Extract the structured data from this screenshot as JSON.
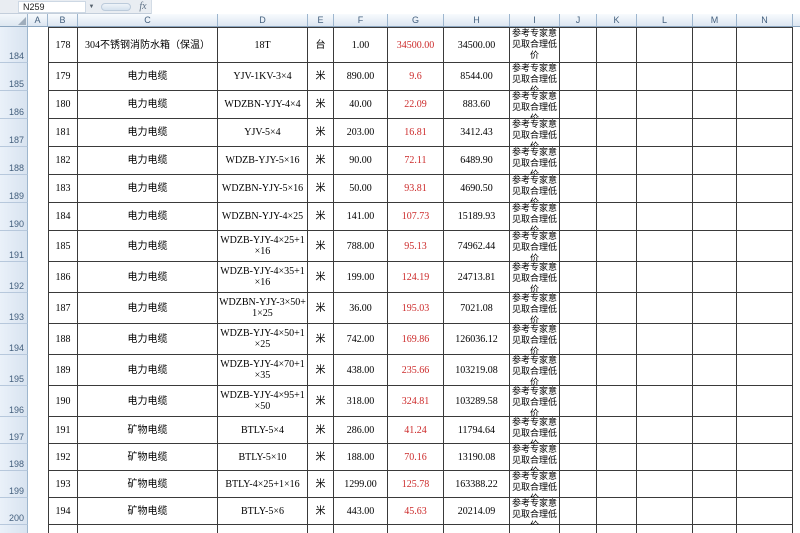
{
  "name_box": {
    "value": "N259"
  },
  "formula_bar": {
    "value": "",
    "fx_label": "fx"
  },
  "column_headers": [
    "A",
    "B",
    "C",
    "D",
    "E",
    "F",
    "G",
    "H",
    "I",
    "J",
    "K",
    "L",
    "M",
    "N"
  ],
  "row_headers": [
    "184",
    "185",
    "186",
    "187",
    "188",
    "189",
    "190",
    "191",
    "192",
    "193",
    "194",
    "195",
    "196",
    "197",
    "198",
    "199",
    "200"
  ],
  "colors": {
    "price_text": "#cc2a2a",
    "grid_border": "#3a3a3a",
    "header_text": "#44607e"
  },
  "table": {
    "rows": [
      {
        "no": "178",
        "name": "304不锈钢消防水箱（保温）",
        "model": "18T",
        "unit": "台",
        "qty": "1.00",
        "price": "34500.00",
        "total": "34500.00",
        "remark": "参考专家意见取合理低价"
      },
      {
        "no": "179",
        "name": "电力电缆",
        "model": "YJV-1KV-3×4",
        "unit": "米",
        "qty": "890.00",
        "price": "9.6",
        "total": "8544.00",
        "remark": "参考专家意见取合理低价"
      },
      {
        "no": "180",
        "name": "电力电缆",
        "model": "WDZBN-YJY-4×4",
        "unit": "米",
        "qty": "40.00",
        "price": "22.09",
        "total": "883.60",
        "remark": "参考专家意见取合理低价"
      },
      {
        "no": "181",
        "name": "电力电缆",
        "model": "YJV-5×4",
        "unit": "米",
        "qty": "203.00",
        "price": "16.81",
        "total": "3412.43",
        "remark": "参考专家意见取合理低价"
      },
      {
        "no": "182",
        "name": "电力电缆",
        "model": "WDZB-YJY-5×16",
        "unit": "米",
        "qty": "90.00",
        "price": "72.11",
        "total": "6489.90",
        "remark": "参考专家意见取合理低价"
      },
      {
        "no": "183",
        "name": "电力电缆",
        "model": "WDZBN-YJY-5×16",
        "unit": "米",
        "qty": "50.00",
        "price": "93.81",
        "total": "4690.50",
        "remark": "参考专家意见取合理低价"
      },
      {
        "no": "184",
        "name": "电力电缆",
        "model": "WDZBN-YJY-4×25",
        "unit": "米",
        "qty": "141.00",
        "price": "107.73",
        "total": "15189.93",
        "remark": "参考专家意见取合理低价"
      },
      {
        "no": "185",
        "name": "电力电缆",
        "model": "WDZB-YJY-4×25+1×16",
        "unit": "米",
        "qty": "788.00",
        "price": "95.13",
        "total": "74962.44",
        "remark": "参考专家意见取合理低价"
      },
      {
        "no": "186",
        "name": "电力电缆",
        "model": "WDZB-YJY-4×35+1×16",
        "unit": "米",
        "qty": "199.00",
        "price": "124.19",
        "total": "24713.81",
        "remark": "参考专家意见取合理低价"
      },
      {
        "no": "187",
        "name": "电力电缆",
        "model": "WDZBN-YJY-3×50+1×25",
        "unit": "米",
        "qty": "36.00",
        "price": "195.03",
        "total": "7021.08",
        "remark": "参考专家意见取合理低价"
      },
      {
        "no": "188",
        "name": "电力电缆",
        "model": "WDZB-YJY-4×50+1×25",
        "unit": "米",
        "qty": "742.00",
        "price": "169.86",
        "total": "126036.12",
        "remark": "参考专家意见取合理低价"
      },
      {
        "no": "189",
        "name": "电力电缆",
        "model": "WDZB-YJY-4×70+1×35",
        "unit": "米",
        "qty": "438.00",
        "price": "235.66",
        "total": "103219.08",
        "remark": "参考专家意见取合理低价"
      },
      {
        "no": "190",
        "name": "电力电缆",
        "model": "WDZB-YJY-4×95+1×50",
        "unit": "米",
        "qty": "318.00",
        "price": "324.81",
        "total": "103289.58",
        "remark": "参考专家意见取合理低价"
      },
      {
        "no": "191",
        "name": "矿物电缆",
        "model": "BTLY-5×4",
        "unit": "米",
        "qty": "286.00",
        "price": "41.24",
        "total": "11794.64",
        "remark": "参考专家意见取合理低价"
      },
      {
        "no": "192",
        "name": "矿物电缆",
        "model": "BTLY-5×10",
        "unit": "米",
        "qty": "188.00",
        "price": "70.16",
        "total": "13190.08",
        "remark": "参考专家意见取合理低价"
      },
      {
        "no": "193",
        "name": "矿物电缆",
        "model": "BTLY-4×25+1×16",
        "unit": "米",
        "qty": "1299.00",
        "price": "125.78",
        "total": "163388.22",
        "remark": "参考专家意见取合理低价"
      },
      {
        "no": "194",
        "name": "矿物电缆",
        "model": "BTLY-5×6",
        "unit": "米",
        "qty": "443.00",
        "price": "45.63",
        "total": "20214.09",
        "remark": "参考专家意见取合理低价"
      }
    ]
  }
}
